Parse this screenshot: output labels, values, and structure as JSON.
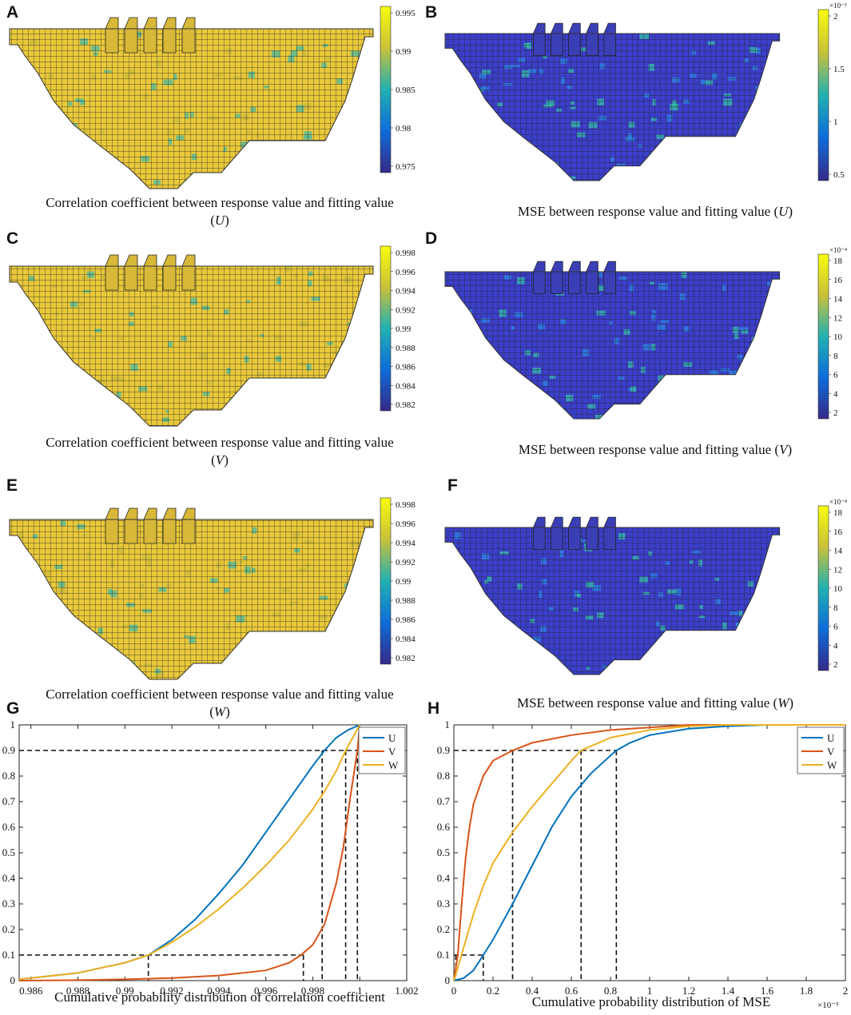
{
  "panels": {
    "A": {
      "letter": "A",
      "caption_main": "Correlation coefficient between response value and fitting value",
      "caption_var": "U",
      "colorbar": {
        "ticks": [
          "0.995",
          "0.99",
          "0.985",
          "0.98",
          "0.975"
        ],
        "exponent": ""
      },
      "scheme": "corr"
    },
    "B": {
      "letter": "B",
      "caption_main": "MSE between response value and fitting value",
      "caption_var": "U",
      "colorbar": {
        "ticks": [
          "2",
          "1.5",
          "1",
          "0.5"
        ],
        "exponent": "×10⁻³"
      },
      "scheme": "mse"
    },
    "C": {
      "letter": "C",
      "caption_main": "Correlation coefficient between response value and fitting value",
      "caption_var": "V",
      "colorbar": {
        "ticks": [
          "0.998",
          "0.996",
          "0.994",
          "0.992",
          "0.99",
          "0.988",
          "0.986",
          "0.984",
          "0.982"
        ],
        "exponent": ""
      },
      "scheme": "corr"
    },
    "D": {
      "letter": "D",
      "caption_main": "MSE between response value and fitting value",
      "caption_var": "V",
      "colorbar": {
        "ticks": [
          "18",
          "16",
          "14",
          "12",
          "10",
          "8",
          "6",
          "4",
          "2"
        ],
        "exponent": "×10⁻⁴"
      },
      "scheme": "mse"
    },
    "E": {
      "letter": "E",
      "caption_main": "Correlation coefficient between response value and fitting value",
      "caption_var": "W",
      "colorbar": {
        "ticks": [
          "0.998",
          "0.996",
          "0.994",
          "0.992",
          "0.99",
          "0.988",
          "0.986",
          "0.984",
          "0.982"
        ],
        "exponent": ""
      },
      "scheme": "corr"
    },
    "F": {
      "letter": "F",
      "caption_main": "MSE between response value and fitting value",
      "caption_var": "W",
      "colorbar": {
        "ticks": [
          "18",
          "16",
          "14",
          "12",
          "10",
          "8",
          "6",
          "4",
          "2"
        ],
        "exponent": "×10⁻⁴"
      },
      "scheme": "mse"
    },
    "G": {
      "letter": "G"
    },
    "H": {
      "letter": "H"
    }
  },
  "colors": {
    "U": "#0072BD",
    "V": "#D95319",
    "W": "#EDB120",
    "parula_low": "#352A87",
    "parula_mid": "#21B1B2",
    "parula_high": "#F9FB0E"
  },
  "chart_data": [
    {
      "type": "line",
      "panel": "G",
      "xlabel": "Cumulative probability distribution of correlation coefficient",
      "ylabel": "",
      "xlim": [
        0.9855,
        1.002
      ],
      "ylim": [
        0,
        1
      ],
      "xticks": [
        0.986,
        0.988,
        0.99,
        0.992,
        0.994,
        0.996,
        0.998,
        1,
        1.002
      ],
      "xtick_labels": [
        "0.986",
        "0.988",
        "0.99",
        "0.992",
        "0.994",
        "0.996",
        "0.998",
        "1",
        "1.002"
      ],
      "yticks": [
        0,
        0.1,
        0.2,
        0.3,
        0.4,
        0.5,
        0.6,
        0.7,
        0.8,
        0.9,
        1
      ],
      "ytick_labels": [
        "0",
        "0.1",
        "0.2",
        "0.3",
        "0.4",
        "0.5",
        "0.6",
        "0.7",
        "0.8",
        "0.9",
        "1"
      ],
      "legend": "top-right",
      "series": [
        {
          "name": "U",
          "x": [
            0.9855,
            0.986,
            0.988,
            0.99,
            0.991,
            0.992,
            0.993,
            0.994,
            0.995,
            0.996,
            0.997,
            0.998,
            0.9985,
            0.999,
            0.9995,
            1.0
          ],
          "y": [
            0.005,
            0.01,
            0.03,
            0.07,
            0.1,
            0.16,
            0.24,
            0.34,
            0.45,
            0.58,
            0.71,
            0.84,
            0.9,
            0.95,
            0.98,
            1.0
          ]
        },
        {
          "name": "V",
          "x": [
            0.9855,
            0.988,
            0.99,
            0.992,
            0.994,
            0.996,
            0.997,
            0.9975,
            0.998,
            0.9985,
            0.999,
            0.9993,
            0.9996,
            0.9999,
            1.0
          ],
          "y": [
            0.0,
            0.002,
            0.005,
            0.01,
            0.02,
            0.04,
            0.07,
            0.1,
            0.14,
            0.22,
            0.38,
            0.52,
            0.72,
            0.9,
            1.0
          ]
        },
        {
          "name": "W",
          "x": [
            0.9855,
            0.986,
            0.988,
            0.99,
            0.991,
            0.992,
            0.993,
            0.994,
            0.995,
            0.996,
            0.997,
            0.998,
            0.9985,
            0.999,
            0.9994,
            0.9997,
            1.0
          ],
          "y": [
            0.005,
            0.01,
            0.03,
            0.07,
            0.1,
            0.15,
            0.21,
            0.28,
            0.36,
            0.45,
            0.55,
            0.67,
            0.74,
            0.82,
            0.9,
            0.95,
            1.0
          ]
        }
      ],
      "reference_lines": [
        {
          "y": 0.1,
          "x_values": [
            0.991,
            0.9976
          ]
        },
        {
          "y": 0.9,
          "x_values": [
            0.9984,
            0.9994,
            0.9999
          ]
        }
      ]
    },
    {
      "type": "line",
      "panel": "H",
      "xlabel": "Cumulative probability distribution of MSE",
      "x_exponent": "×10⁻³",
      "ylabel": "",
      "xlim": [
        0,
        2
      ],
      "ylim": [
        0,
        1
      ],
      "xticks": [
        0,
        0.2,
        0.4,
        0.6,
        0.8,
        1,
        1.2,
        1.4,
        1.6,
        1.8,
        2
      ],
      "xtick_labels": [
        "0",
        "0.2",
        "0.4",
        "0.6",
        "0.8",
        "1",
        "1.2",
        "1.4",
        "1.6",
        "1.8",
        "2"
      ],
      "yticks": [
        0,
        0.1,
        0.2,
        0.3,
        0.4,
        0.5,
        0.6,
        0.7,
        0.8,
        0.9,
        1
      ],
      "ytick_labels": [
        "0",
        "0.1",
        "0.2",
        "0.3",
        "0.4",
        "0.5",
        "0.6",
        "0.7",
        "0.8",
        "0.9",
        "1"
      ],
      "legend": "top-right",
      "series": [
        {
          "name": "U",
          "x": [
            0,
            0.05,
            0.1,
            0.15,
            0.2,
            0.3,
            0.4,
            0.5,
            0.6,
            0.7,
            0.8,
            0.83,
            0.9,
            1.0,
            1.2,
            1.4,
            1.6,
            2.0
          ],
          "y": [
            0,
            0.01,
            0.04,
            0.1,
            0.16,
            0.3,
            0.45,
            0.6,
            0.72,
            0.81,
            0.88,
            0.9,
            0.93,
            0.96,
            0.985,
            0.995,
            1.0,
            1.0
          ]
        },
        {
          "name": "V",
          "x": [
            0,
            0.02,
            0.04,
            0.06,
            0.08,
            0.1,
            0.15,
            0.2,
            0.3,
            0.4,
            0.6,
            0.8,
            1.0,
            1.2,
            2.0
          ],
          "y": [
            0,
            0.1,
            0.3,
            0.48,
            0.6,
            0.69,
            0.8,
            0.86,
            0.9,
            0.93,
            0.96,
            0.98,
            0.99,
            1.0,
            1.0
          ]
        },
        {
          "name": "W",
          "x": [
            0,
            0.02,
            0.05,
            0.1,
            0.15,
            0.2,
            0.3,
            0.4,
            0.5,
            0.6,
            0.65,
            0.8,
            1.0,
            1.2,
            1.4,
            2.0
          ],
          "y": [
            0,
            0.05,
            0.13,
            0.26,
            0.37,
            0.46,
            0.58,
            0.68,
            0.77,
            0.86,
            0.9,
            0.95,
            0.98,
            0.995,
            1.0,
            1.0
          ]
        }
      ],
      "reference_lines": [
        {
          "y": 0.1,
          "x_values": [
            0.01,
            0.15
          ]
        },
        {
          "y": 0.9,
          "x_values": [
            0.3,
            0.65,
            0.83
          ]
        }
      ]
    }
  ]
}
